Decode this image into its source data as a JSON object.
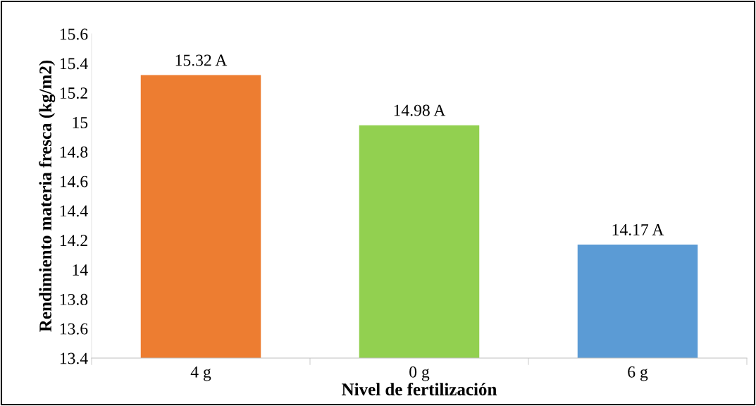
{
  "chart_data": {
    "type": "bar",
    "xlabel": "Nivel de fertilización",
    "ylabel": "Rendimiento materia fresca (kg/m2)",
    "categories": [
      "4 g",
      "0 g",
      "6 g"
    ],
    "values": [
      15.32,
      14.98,
      14.17
    ],
    "colors": [
      "#ed7d31",
      "#92d050",
      "#5b9bd5"
    ],
    "value_labels": [
      "15.32 A",
      "14.98 A",
      "14.17 A"
    ],
    "ylim": [
      13.4,
      15.6
    ],
    "yticks": [
      13.4,
      13.6,
      13.8,
      14,
      14.2,
      14.4,
      14.6,
      14.8,
      15,
      15.2,
      15.4,
      15.6
    ],
    "grid": false,
    "legend": false
  }
}
